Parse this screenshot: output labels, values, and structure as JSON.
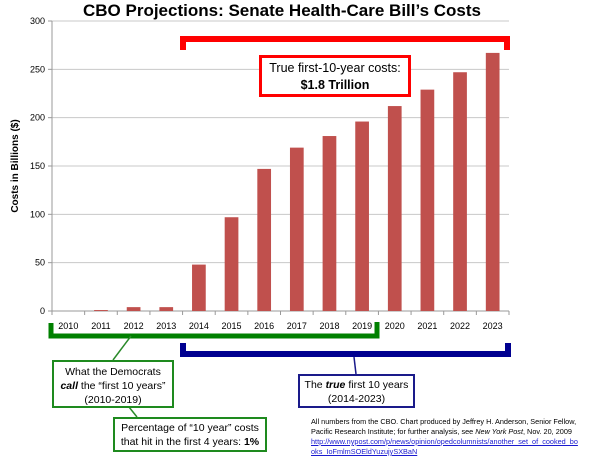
{
  "chart_data": {
    "type": "bar",
    "title": "CBO Projections: Senate Health-Care Bill’s Costs",
    "xlabel": "",
    "ylabel": "Costs in Billions ($)",
    "ylim": [
      0,
      300
    ],
    "yticks": [
      0,
      50,
      100,
      150,
      200,
      250,
      300
    ],
    "grid": true,
    "bar_color": "#c0504d",
    "categories": [
      "2010",
      "2011",
      "2012",
      "2013",
      "2014",
      "2015",
      "2016",
      "2017",
      "2018",
      "2019",
      "2020",
      "2021",
      "2022",
      "2023"
    ],
    "values": [
      0,
      1,
      4,
      4,
      48,
      97,
      147,
      169,
      181,
      196,
      212,
      229,
      247,
      267
    ],
    "annotations": {
      "red_bracket": {
        "from": "2014",
        "to": "2023",
        "color": "#ff0000"
      },
      "green_bracket": {
        "from": "2010",
        "to": "2019",
        "color": "#007a00"
      },
      "navy_bracket": {
        "from": "2014",
        "to": "2023",
        "color": "#000090"
      }
    }
  },
  "callouts": {
    "true_costs": {
      "line1": "True first-10-year costs:",
      "line2": "$1.8 Trillion"
    },
    "democrats": {
      "line1": "What the Democrats",
      "line2_em": "call",
      "line2_rest": " the “first 10 years”",
      "line3": "(2010-2019)"
    },
    "percentage": {
      "line1": "Percentage of “10 year” costs",
      "line2": "that hit in the first 4 years: ",
      "line2_bold": "1%"
    },
    "true_ten": {
      "line1_pre": "The ",
      "line1_em": "true",
      "line1_post": " first 10 years",
      "line2": "(2014-2023)"
    }
  },
  "source": {
    "line1": "All numbers from the CBO.  Chart produced by Jeffrey H. Anderson, Senior Fellow,",
    "line2_pre": "Pacific Research Institute; for further analysis, see ",
    "line2_em": "New York Post",
    "line2_post": ", Nov. 20, 2009",
    "link_line1": "http://www.nypost.com/p/news/opinion/opedcolumnists/another_set_of_cooked_bo",
    "link_line2": "oks_IoFmlmSOEldYuzujySXBaN"
  }
}
